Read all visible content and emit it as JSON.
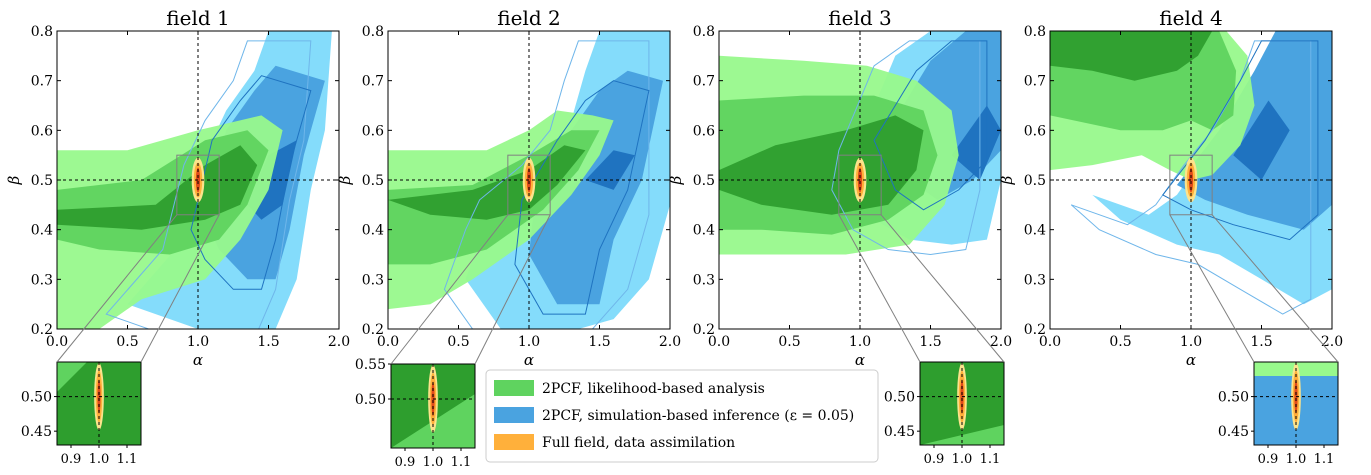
{
  "chart_data": {
    "type": "contour",
    "panels": [
      {
        "title": "field 1",
        "inset_pos": "lower-left"
      },
      {
        "title": "field 2",
        "inset_pos": "lower-left"
      },
      {
        "title": "field 3",
        "inset_pos": "lower-right"
      },
      {
        "title": "field 4",
        "inset_pos": "lower-right"
      }
    ],
    "xlabel": "α",
    "ylabel": "β",
    "xlim": [
      0.0,
      2.0
    ],
    "ylim": [
      0.2,
      0.8
    ],
    "xticks": [
      "0.0",
      "0.5",
      "1.0",
      "1.5",
      "2.0"
    ],
    "yticks": [
      "0.2",
      "0.3",
      "0.4",
      "0.5",
      "0.6",
      "0.7",
      "0.8"
    ],
    "truth": {
      "alpha": 1.0,
      "beta": 0.5
    },
    "zoom_box": {
      "xlim": [
        0.85,
        1.15
      ],
      "ylim": [
        0.43,
        0.55
      ]
    },
    "insets": [
      {
        "yticks": [
          "0.45",
          "0.50"
        ],
        "xticks": [
          "0.9",
          "1.0",
          "1.1"
        ]
      },
      {
        "yticks": [
          "0.50",
          "0.55"
        ],
        "xticks": [
          "0.9",
          "1.0",
          "1.1"
        ]
      },
      {
        "yticks": [
          "0.45",
          "0.50"
        ],
        "xticks": [
          "0.9",
          "1.0",
          "1.1"
        ]
      },
      {
        "yticks": [
          "0.45",
          "0.50"
        ],
        "xticks": [
          "0.9",
          "1.0",
          "1.1"
        ]
      }
    ],
    "legend": {
      "placement": "bottom-center",
      "entries": [
        {
          "label": "2PCF, likelihood-based analysis",
          "color": "#5fd35f"
        },
        {
          "label": "2PCF, simulation-based inference (ε = 0.05)",
          "color": "#4aa3e0"
        },
        {
          "label": "Full field, data assimilation",
          "color": "#ffb03b"
        }
      ]
    },
    "series": [
      {
        "label_index": 0,
        "colors": [
          "#98f98c",
          "#5fd35f",
          "#2e9e2e"
        ]
      },
      {
        "label_index": 1,
        "colors": [
          "#84dcfb",
          "#4aa3e0",
          "#1f73c0"
        ]
      },
      {
        "label_index": 2,
        "colors": [
          "#fbe38c",
          "#ffb03b",
          "#e0491a"
        ]
      }
    ],
    "grid": false
  }
}
